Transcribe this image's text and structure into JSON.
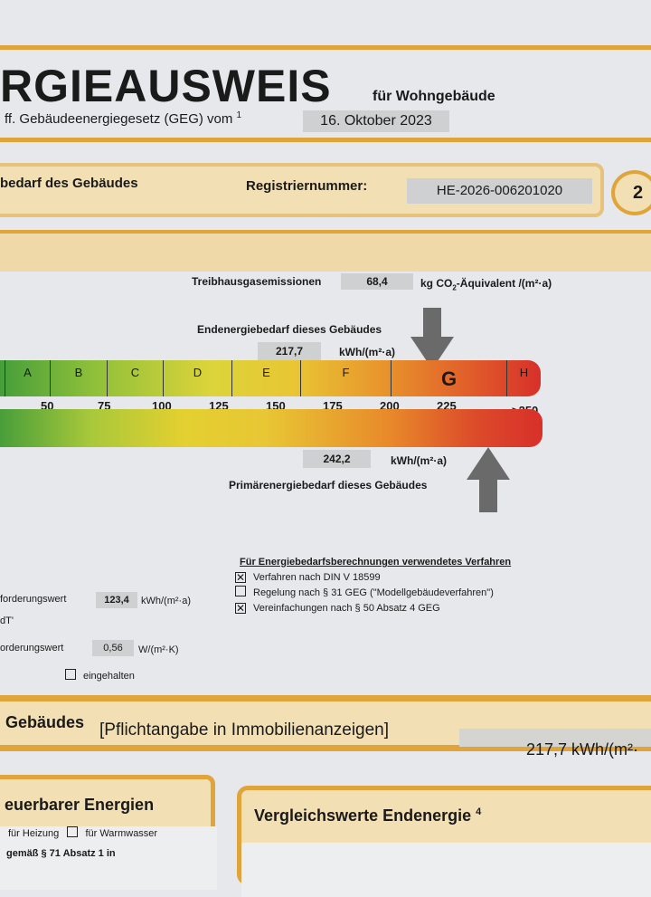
{
  "header": {
    "title": "RGIEAUSWEIS",
    "subtitle": "für Wohngebäude",
    "law": "ff. Gebäudeenergiegesetz (GEG) vom",
    "law_sup": "1",
    "date": "16. Oktober 2023"
  },
  "section": {
    "label": "bedarf des Gebäudes",
    "reg_label": "Registriernummer:",
    "reg_value": "HE-2026-006201020",
    "page_number": "2"
  },
  "emissions": {
    "label": "Treibhausgasemissionen",
    "value": "68,4",
    "unit_pre": "kg CO",
    "unit_sub": "2",
    "unit_post": "-Äquivalent /(m²·a)"
  },
  "end_energy": {
    "label": "Endenergiebedarf dieses Gebäudes",
    "value": "217,7",
    "unit": "kWh/(m²·a)"
  },
  "primary_energy": {
    "label": "Primärenergiebedarf dieses Gebäudes",
    "value": "242,2",
    "unit": "kWh/(m²·a)"
  },
  "scale": {
    "classes": [
      "A",
      "B",
      "C",
      "D",
      "E",
      "F",
      "G",
      "H"
    ],
    "active_class": "G",
    "ticks": [
      "50",
      "75",
      "100",
      "125",
      "150",
      "175",
      "200",
      "225",
      ">250"
    ],
    "colors": {
      "green": "#3f9a3a",
      "yellow": "#e4d030",
      "orange": "#e88a2a",
      "red": "#d8302a"
    }
  },
  "requirements": {
    "row1_label": "forderungswert",
    "row1_value": "123,4",
    "row1_unit": "kWh/(m²·a)",
    "row2_fragment": "dT'",
    "row3_label": "orderungswert",
    "row3_value": "0,56",
    "row3_unit": "W/(m²·K)",
    "complied_label": "eingehalten"
  },
  "methods": {
    "title": "Für Energiebedarfsberechnungen verwendetes Verfahren",
    "items": [
      {
        "label": "Verfahren nach DIN V 18599",
        "checked": true
      },
      {
        "label": "Regelung nach § 31 GEG (\"Modellgebäudeverfahren\")",
        "checked": false
      },
      {
        "label": "Vereinfachungen nach § 50 Absatz 4 GEG",
        "checked": true
      }
    ]
  },
  "listing": {
    "label": "Gebäudes",
    "note": "[Pflichtangabe in Immobilienanzeigen]",
    "value": "217,7 kWh/(m²·"
  },
  "renewables": {
    "title": "euerbarer Energien",
    "heating": "für Heizung",
    "hot_water": "für Warmwasser",
    "fragment": "gemäß § 71 Absatz 1 in"
  },
  "comparison": {
    "title": "Vergleichswerte Endenergie",
    "sup": "4"
  }
}
